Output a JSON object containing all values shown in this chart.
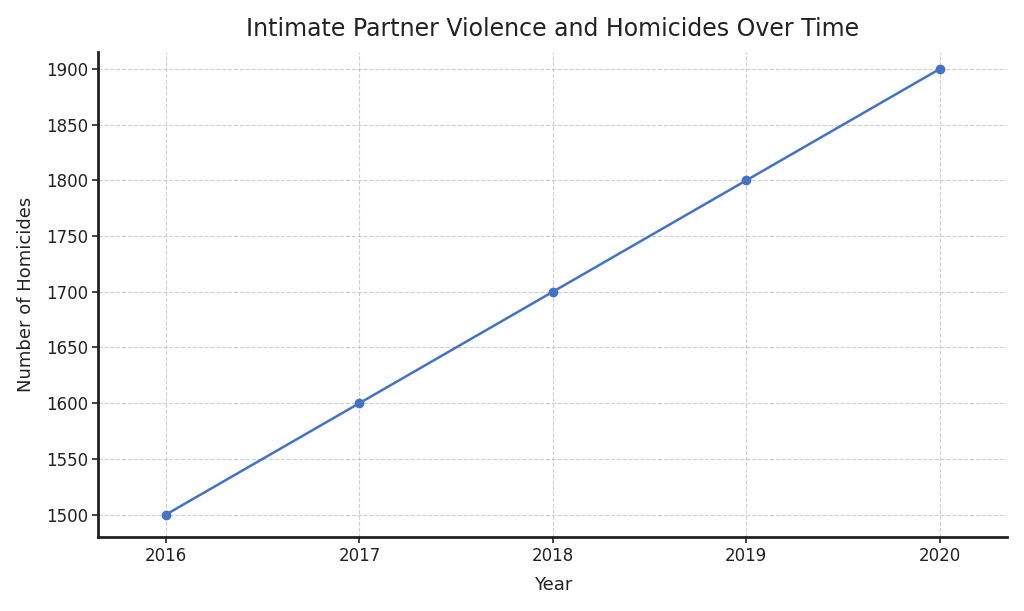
{
  "title": "Intimate Partner Violence and Homicides Over Time",
  "xlabel": "Year",
  "ylabel": "Number of Homicides",
  "years": [
    2016,
    2017,
    2018,
    2019,
    2020
  ],
  "homicides": [
    1500,
    1600,
    1700,
    1800,
    1900
  ],
  "line_color": "#4472c4",
  "marker_color": "#4472c4",
  "marker_style": "o",
  "marker_size": 6,
  "line_width": 1.8,
  "ylim_min": 1480,
  "ylim_max": 1915,
  "xlim_min": 2015.65,
  "xlim_max": 2020.35,
  "ytick_values": [
    1500,
    1550,
    1600,
    1650,
    1700,
    1750,
    1800,
    1850,
    1900
  ],
  "background_color": "#ffffff",
  "plot_bg_color": "#ffffff",
  "grid_color": "#bbbbbb",
  "grid_style": "--",
  "grid_alpha": 0.7,
  "title_fontsize": 17,
  "label_fontsize": 13,
  "tick_fontsize": 12,
  "spine_color": "#222222",
  "spine_linewidth": 2.0
}
